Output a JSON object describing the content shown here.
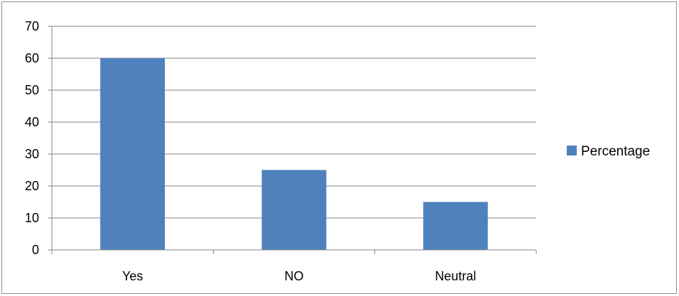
{
  "chart_data": {
    "type": "bar",
    "categories": [
      "Yes",
      "NO",
      "Neutral"
    ],
    "series": [
      {
        "name": "Percentage",
        "values": [
          60,
          25,
          15
        ],
        "color": "#4f81bd"
      }
    ],
    "title": "",
    "xlabel": "",
    "ylabel": "",
    "ylim": [
      0,
      70
    ],
    "yticks": [
      0,
      10,
      20,
      30,
      40,
      50,
      60,
      70
    ],
    "grid": true,
    "legend_position": "right",
    "colors": {
      "bar": "#4f81bd",
      "grid": "#868686",
      "axis": "#868686"
    }
  }
}
